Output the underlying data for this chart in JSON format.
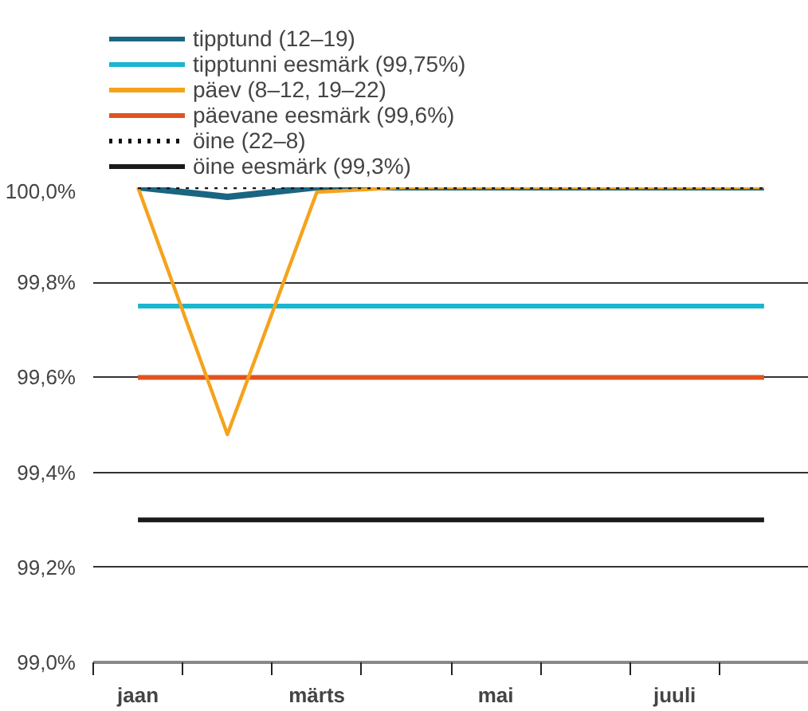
{
  "chart_data": {
    "type": "line",
    "categories": [
      "jaan",
      null,
      "märts",
      null,
      "mai",
      null,
      "juuli",
      null
    ],
    "series": [
      {
        "name": "tipptund (12–19)",
        "color": "#1a6582",
        "values": [
          100.0,
          99.98,
          100.0,
          100.0,
          100.0,
          100.0,
          100.0,
          100.0
        ]
      },
      {
        "name": "tipptunni eesmärk (99,75%)",
        "color": "#1bb6cf",
        "values": [
          99.75,
          99.75,
          99.75,
          99.75,
          99.75,
          99.75,
          99.75,
          99.75
        ]
      },
      {
        "name": "päev (8–12, 19–22)",
        "color": "#f5a31c",
        "values": [
          100.0,
          99.48,
          99.99,
          100.0,
          100.0,
          100.0,
          100.0,
          100.0
        ]
      },
      {
        "name": "päevane eesmärk (99,6%)",
        "color": "#e2531f",
        "values": [
          99.6,
          99.6,
          99.6,
          99.6,
          99.6,
          99.6,
          99.6,
          99.6
        ]
      },
      {
        "name": "öine (22–8)",
        "color": "#111111",
        "line_style": "dotted",
        "values": [
          100.0,
          100.0,
          100.0,
          100.0,
          100.0,
          100.0,
          100.0,
          100.0
        ]
      },
      {
        "name": "öine eesmärk (99,3%)",
        "color": "#1a1a1a",
        "values": [
          99.3,
          99.3,
          99.3,
          99.3,
          99.3,
          99.3,
          99.3,
          99.3
        ]
      }
    ],
    "ylim": [
      99.0,
      100.0
    ],
    "yticks": [
      {
        "value": 99.0,
        "label": "99,0%"
      },
      {
        "value": 99.2,
        "label": "99,2%"
      },
      {
        "value": 99.4,
        "label": "99,4%"
      },
      {
        "value": 99.6,
        "label": "99,6%"
      },
      {
        "value": 99.8,
        "label": "99,8%"
      },
      {
        "value": 100.0,
        "label": "100,0%"
      }
    ],
    "grid": "y",
    "legend": "top",
    "marker": "none",
    "line_style": "solid"
  }
}
